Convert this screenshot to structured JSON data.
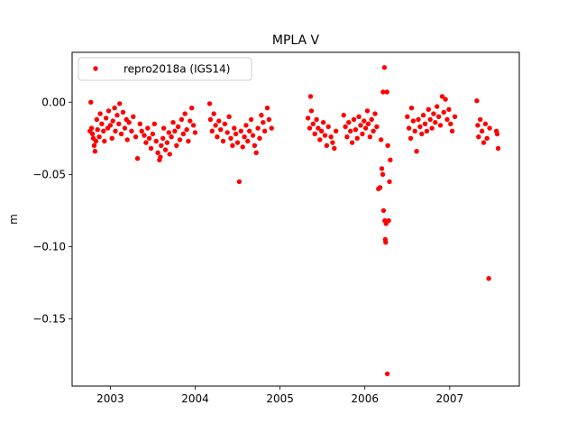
{
  "chart_data": {
    "type": "scatter",
    "title": "MPLA V",
    "xlabel": "",
    "ylabel": "m",
    "xlim": [
      2002.55,
      2007.82
    ],
    "ylim": [
      -0.1965,
      0.0345
    ],
    "x_ticks": [
      2003,
      2004,
      2005,
      2006,
      2007
    ],
    "x_tick_labels": [
      "2003",
      "2004",
      "2005",
      "2006",
      "2007"
    ],
    "y_ticks": [
      0.0,
      -0.05,
      -0.1,
      -0.15
    ],
    "y_tick_labels": [
      "0.00",
      "−0.05",
      "−0.10",
      "−0.15"
    ],
    "grid": false,
    "legend_position": "top-left",
    "marker_color": "#ff0000",
    "series": [
      {
        "name": "repro2018a (IGS14)",
        "marker": "dot",
        "color": "#ff0000",
        "points": [
          [
            2002.77,
            0.0
          ],
          [
            2002.76,
            -0.02
          ],
          [
            2002.78,
            -0.018
          ],
          [
            2002.79,
            -0.022
          ],
          [
            2002.8,
            -0.025
          ],
          [
            2002.81,
            -0.03
          ],
          [
            2002.82,
            -0.034
          ],
          [
            2002.83,
            -0.027
          ],
          [
            2002.84,
            -0.012
          ],
          [
            2002.85,
            -0.019
          ],
          [
            2002.87,
            -0.024
          ],
          [
            2002.88,
            -0.008
          ],
          [
            2002.9,
            -0.015
          ],
          [
            2002.92,
            -0.02
          ],
          [
            2002.93,
            -0.027
          ],
          [
            2002.95,
            -0.011
          ],
          [
            2002.97,
            -0.018
          ],
          [
            2002.98,
            -0.006
          ],
          [
            2003.0,
            -0.016
          ],
          [
            2003.02,
            -0.025
          ],
          [
            2003.03,
            -0.013
          ],
          [
            2003.05,
            -0.004
          ],
          [
            2003.06,
            -0.02
          ],
          [
            2003.08,
            -0.009
          ],
          [
            2003.1,
            -0.015
          ],
          [
            2003.11,
            -0.001
          ],
          [
            2003.13,
            -0.022
          ],
          [
            2003.15,
            -0.007
          ],
          [
            2003.17,
            -0.018
          ],
          [
            2003.19,
            -0.012
          ],
          [
            2003.2,
            -0.026
          ],
          [
            2003.22,
            -0.014
          ],
          [
            2003.25,
            -0.02
          ],
          [
            2003.27,
            -0.01
          ],
          [
            2003.3,
            -0.024
          ],
          [
            2003.32,
            -0.039
          ],
          [
            2003.35,
            -0.015
          ],
          [
            2003.37,
            -0.02
          ],
          [
            2003.4,
            -0.023
          ],
          [
            2003.42,
            -0.028
          ],
          [
            2003.44,
            -0.018
          ],
          [
            2003.46,
            -0.025
          ],
          [
            2003.48,
            -0.032
          ],
          [
            2003.5,
            -0.022
          ],
          [
            2003.52,
            -0.015
          ],
          [
            2003.54,
            -0.027
          ],
          [
            2003.56,
            -0.035
          ],
          [
            2003.58,
            -0.04
          ],
          [
            2003.59,
            -0.038
          ],
          [
            2003.6,
            -0.03
          ],
          [
            2003.62,
            -0.025
          ],
          [
            2003.63,
            -0.018
          ],
          [
            2003.65,
            -0.033
          ],
          [
            2003.67,
            -0.028
          ],
          [
            2003.69,
            -0.021
          ],
          [
            2003.7,
            -0.036
          ],
          [
            2003.72,
            -0.024
          ],
          [
            2003.74,
            -0.014
          ],
          [
            2003.76,
            -0.02
          ],
          [
            2003.78,
            -0.03
          ],
          [
            2003.8,
            -0.017
          ],
          [
            2003.82,
            -0.026
          ],
          [
            2003.84,
            -0.012
          ],
          [
            2003.86,
            -0.022
          ],
          [
            2003.88,
            -0.008
          ],
          [
            2003.9,
            -0.019
          ],
          [
            2003.92,
            -0.027
          ],
          [
            2003.94,
            -0.013
          ],
          [
            2003.96,
            -0.004
          ],
          [
            2003.98,
            -0.016
          ],
          [
            2004.0,
            -0.021
          ],
          [
            2004.17,
            -0.001
          ],
          [
            2004.18,
            -0.012
          ],
          [
            2004.2,
            -0.02
          ],
          [
            2004.22,
            -0.008
          ],
          [
            2004.24,
            -0.016
          ],
          [
            2004.26,
            -0.024
          ],
          [
            2004.28,
            -0.013
          ],
          [
            2004.3,
            -0.019
          ],
          [
            2004.33,
            -0.027
          ],
          [
            2004.35,
            -0.015
          ],
          [
            2004.38,
            -0.021
          ],
          [
            2004.4,
            -0.01
          ],
          [
            2004.42,
            -0.025
          ],
          [
            2004.44,
            -0.03
          ],
          [
            2004.46,
            -0.018
          ],
          [
            2004.48,
            -0.022
          ],
          [
            2004.5,
            -0.028
          ],
          [
            2004.52,
            -0.055
          ],
          [
            2004.54,
            -0.02
          ],
          [
            2004.56,
            -0.031
          ],
          [
            2004.58,
            -0.024
          ],
          [
            2004.6,
            -0.016
          ],
          [
            2004.62,
            -0.027
          ],
          [
            2004.64,
            -0.02
          ],
          [
            2004.66,
            -0.012
          ],
          [
            2004.68,
            -0.023
          ],
          [
            2004.7,
            -0.03
          ],
          [
            2004.72,
            -0.035
          ],
          [
            2004.74,
            -0.018
          ],
          [
            2004.76,
            -0.025
          ],
          [
            2004.78,
            -0.009
          ],
          [
            2004.8,
            -0.014
          ],
          [
            2004.82,
            -0.02
          ],
          [
            2004.85,
            -0.004
          ],
          [
            2004.87,
            -0.012
          ],
          [
            2004.9,
            -0.018
          ],
          [
            2005.33,
            -0.011
          ],
          [
            2005.35,
            -0.018
          ],
          [
            2005.36,
            0.004
          ],
          [
            2005.37,
            -0.006
          ],
          [
            2005.39,
            -0.015
          ],
          [
            2005.41,
            -0.022
          ],
          [
            2005.43,
            -0.012
          ],
          [
            2005.45,
            -0.018
          ],
          [
            2005.47,
            -0.026
          ],
          [
            2005.49,
            -0.02
          ],
          [
            2005.51,
            -0.014
          ],
          [
            2005.53,
            -0.023
          ],
          [
            2005.55,
            -0.03
          ],
          [
            2005.57,
            -0.017
          ],
          [
            2005.6,
            -0.024
          ],
          [
            2005.62,
            -0.028
          ],
          [
            2005.64,
            -0.032
          ],
          [
            2005.66,
            -0.02
          ],
          [
            2005.75,
            -0.009
          ],
          [
            2005.77,
            -0.017
          ],
          [
            2005.79,
            -0.024
          ],
          [
            2005.81,
            -0.014
          ],
          [
            2005.83,
            -0.02
          ],
          [
            2005.85,
            -0.028
          ],
          [
            2005.87,
            -0.012
          ],
          [
            2005.89,
            -0.019
          ],
          [
            2005.91,
            -0.025
          ],
          [
            2005.93,
            -0.01
          ],
          [
            2005.95,
            -0.016
          ],
          [
            2005.97,
            -0.022
          ],
          [
            2005.99,
            -0.013
          ],
          [
            2006.01,
            -0.018
          ],
          [
            2006.03,
            -0.006
          ],
          [
            2006.04,
            -0.015
          ],
          [
            2006.06,
            -0.024
          ],
          [
            2006.08,
            -0.012
          ],
          [
            2006.1,
            -0.02
          ],
          [
            2006.12,
            -0.008
          ],
          [
            2006.14,
            -0.017
          ],
          [
            2006.16,
            -0.06
          ],
          [
            2006.18,
            -0.059
          ],
          [
            2006.19,
            -0.026
          ],
          [
            2006.2,
            -0.046
          ],
          [
            2006.21,
            -0.05
          ],
          [
            2006.215,
            0.007
          ],
          [
            2006.22,
            -0.075
          ],
          [
            2006.23,
            0.024
          ],
          [
            2006.235,
            -0.082
          ],
          [
            2006.24,
            -0.095
          ],
          [
            2006.245,
            -0.097
          ],
          [
            2006.25,
            -0.084
          ],
          [
            2006.26,
            0.007
          ],
          [
            2006.265,
            -0.188
          ],
          [
            2006.27,
            -0.03
          ],
          [
            2006.28,
            -0.082
          ],
          [
            2006.29,
            -0.055
          ],
          [
            2006.3,
            -0.04
          ],
          [
            2006.5,
            -0.01
          ],
          [
            2006.52,
            -0.018
          ],
          [
            2006.54,
            -0.025
          ],
          [
            2006.55,
            -0.004
          ],
          [
            2006.57,
            -0.013
          ],
          [
            2006.59,
            -0.02
          ],
          [
            2006.61,
            -0.034
          ],
          [
            2006.63,
            -0.012
          ],
          [
            2006.65,
            -0.017
          ],
          [
            2006.67,
            -0.022
          ],
          [
            2006.69,
            -0.009
          ],
          [
            2006.71,
            -0.015
          ],
          [
            2006.73,
            -0.02
          ],
          [
            2006.75,
            -0.005
          ],
          [
            2006.77,
            -0.012
          ],
          [
            2006.79,
            -0.018
          ],
          [
            2006.81,
            -0.008
          ],
          [
            2006.83,
            -0.014
          ],
          [
            2006.85,
            -0.003
          ],
          [
            2006.87,
            -0.01
          ],
          [
            2006.89,
            -0.016
          ],
          [
            2006.91,
            0.004
          ],
          [
            2006.93,
            -0.007
          ],
          [
            2006.95,
            0.002
          ],
          [
            2006.97,
            -0.012
          ],
          [
            2006.99,
            -0.005
          ],
          [
            2007.01,
            -0.015
          ],
          [
            2007.03,
            -0.02
          ],
          [
            2007.06,
            -0.01
          ],
          [
            2007.32,
            0.001
          ],
          [
            2007.33,
            -0.016
          ],
          [
            2007.34,
            -0.024
          ],
          [
            2007.36,
            -0.012
          ],
          [
            2007.38,
            -0.02
          ],
          [
            2007.4,
            -0.028
          ],
          [
            2007.42,
            -0.015
          ],
          [
            2007.44,
            -0.025
          ],
          [
            2007.46,
            -0.122
          ],
          [
            2007.47,
            -0.018
          ],
          [
            2007.55,
            -0.02
          ],
          [
            2007.56,
            -0.022
          ],
          [
            2007.57,
            -0.032
          ]
        ]
      }
    ]
  }
}
